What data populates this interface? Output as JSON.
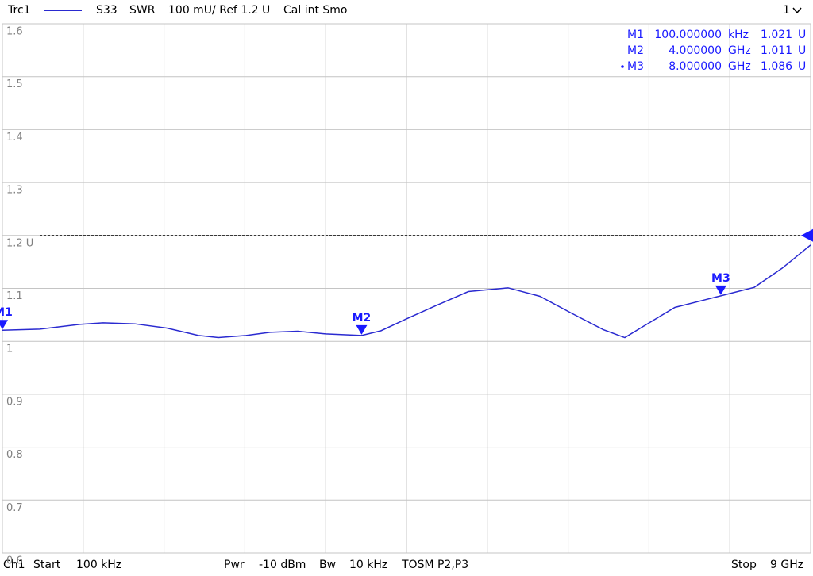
{
  "chart_data": {
    "type": "line",
    "header": {
      "trace": "Trc1",
      "param": "S33",
      "format": "SWR",
      "scale": "100 mU/ Ref 1.2 U",
      "status": "Cal int Smo",
      "window": "1"
    },
    "footer": {
      "channel": "Ch1",
      "start": "Start",
      "start_value": "100 kHz",
      "power": "Pwr",
      "power_value": "-10 dBm",
      "bw": "Bw",
      "bw_value": "10 kHz",
      "cal": "TOSM P2,P3",
      "stop": "Stop",
      "stop_value": "9 GHz"
    },
    "xlim": [
      0.0001,
      9
    ],
    "ylim": [
      0.6,
      1.6
    ],
    "yticks": [
      1.6,
      1.5,
      1.4,
      1.3,
      {
        "value": 1.2,
        "label": "1.2 U"
      },
      1.1,
      1,
      0.9,
      0.8,
      0.7,
      0.6
    ],
    "reference": 1.2,
    "grid": true,
    "series": [
      {
        "name": "Trc1",
        "color": "#2a2ad0",
        "x": [
          0.0001,
          0.416,
          0.858,
          1.123,
          1.476,
          1.83,
          2.184,
          2.405,
          2.714,
          2.979,
          3.289,
          3.598,
          4.0,
          4.217,
          4.482,
          4.836,
          5.189,
          5.631,
          5.986,
          6.339,
          6.692,
          6.931,
          7.135,
          7.488,
          8.0,
          8.373,
          8.682,
          9.0
        ],
        "values": [
          1.021,
          1.023,
          1.032,
          1.035,
          1.033,
          1.025,
          1.011,
          1.007,
          1.011,
          1.017,
          1.019,
          1.014,
          1.011,
          1.02,
          1.041,
          1.068,
          1.094,
          1.101,
          1.085,
          1.053,
          1.022,
          1.007,
          1.028,
          1.064,
          1.086,
          1.102,
          1.138,
          1.182
        ]
      }
    ],
    "markers": [
      {
        "name": "M1",
        "x": 0.0001,
        "x_label": "100.000000",
        "x_unit": "kHz",
        "value": 1.021,
        "unit": "U"
      },
      {
        "name": "M2",
        "x": 4,
        "x_label": "4.000000",
        "x_unit": "GHz",
        "value": 1.011,
        "unit": "U"
      },
      {
        "name": "M3",
        "x": 8,
        "x_label": "8.000000",
        "x_unit": "GHz",
        "value": 1.086,
        "unit": "U"
      }
    ],
    "active_marker": 2
  }
}
